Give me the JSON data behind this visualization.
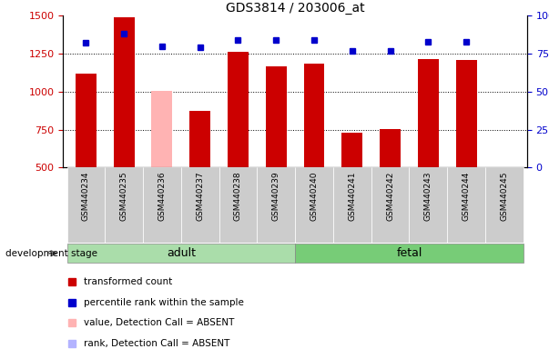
{
  "title": "GDS3814 / 203006_at",
  "samples": [
    "GSM440234",
    "GSM440235",
    "GSM440236",
    "GSM440237",
    "GSM440238",
    "GSM440239",
    "GSM440240",
    "GSM440241",
    "GSM440242",
    "GSM440243",
    "GSM440244",
    "GSM440245"
  ],
  "bar_values": [
    1120,
    1490,
    1005,
    875,
    1260,
    1165,
    1185,
    730,
    755,
    1215,
    1210,
    null
  ],
  "bar_absent": [
    false,
    false,
    true,
    false,
    false,
    false,
    false,
    false,
    false,
    false,
    false,
    true
  ],
  "rank_values": [
    82,
    88,
    80,
    79,
    84,
    84,
    84,
    77,
    77,
    83,
    83,
    null
  ],
  "rank_absent": [
    false,
    false,
    false,
    false,
    false,
    false,
    false,
    false,
    false,
    false,
    false,
    true
  ],
  "adult_count": 6,
  "fetal_count": 6,
  "ylim_left": [
    500,
    1500
  ],
  "ylim_right": [
    0,
    100
  ],
  "yticks_left": [
    500,
    750,
    1000,
    1250,
    1500
  ],
  "yticks_right": [
    0,
    25,
    50,
    75,
    100
  ],
  "bar_color_normal": "#cc0000",
  "bar_color_absent": "#ffb3b3",
  "rank_color_normal": "#0000cc",
  "rank_color_absent": "#b3b3ff",
  "adult_bg": "#aaddaa",
  "fetal_bg": "#77cc77",
  "sample_label_bg": "#cccccc",
  "group_label_adult": "adult",
  "group_label_fetal": "fetal",
  "stage_label": "development stage",
  "legend_items": [
    {
      "label": "transformed count",
      "color": "#cc0000"
    },
    {
      "label": "percentile rank within the sample",
      "color": "#0000cc"
    },
    {
      "label": "value, Detection Call = ABSENT",
      "color": "#ffb3b3"
    },
    {
      "label": "rank, Detection Call = ABSENT",
      "color": "#b3b3ff"
    }
  ]
}
